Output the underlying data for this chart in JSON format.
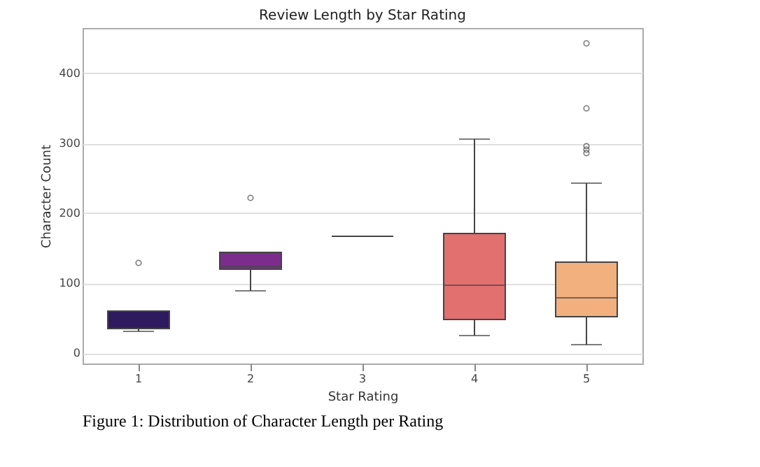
{
  "chart_data": {
    "type": "box",
    "title": "Review Length by Star Rating",
    "xlabel": "Star Rating",
    "ylabel": "Character Count",
    "categories": [
      "1",
      "2",
      "3",
      "4",
      "5"
    ],
    "boxes": [
      {
        "low": 31,
        "q1": 35,
        "median": 35,
        "q3": 60,
        "high": 60,
        "outliers": [
          129
        ]
      },
      {
        "low": 89,
        "q1": 120,
        "median": 124,
        "q3": 144,
        "high": 144,
        "outliers": [
          222
        ]
      },
      {
        "low": 167,
        "q1": 167,
        "median": 167,
        "q3": 167,
        "high": 167
      },
      {
        "low": 25,
        "q1": 48,
        "median": 97,
        "q3": 171,
        "high": 306
      },
      {
        "low": 12,
        "q1": 52,
        "median": 79,
        "q3": 130,
        "high": 243,
        "outliers": [
          286,
          291,
          296,
          350,
          443
        ]
      }
    ],
    "colors": [
      "#2e1a5e",
      "#7c2d8c",
      "#444444",
      "#e1706e",
      "#f2b07f"
    ],
    "ylim": [
      -15,
      465
    ],
    "yticks": [
      0,
      100,
      200,
      300,
      400
    ],
    "grid": "y",
    "annotations": [
      "Figure 1: Distribution of Character Length per Rating"
    ]
  }
}
